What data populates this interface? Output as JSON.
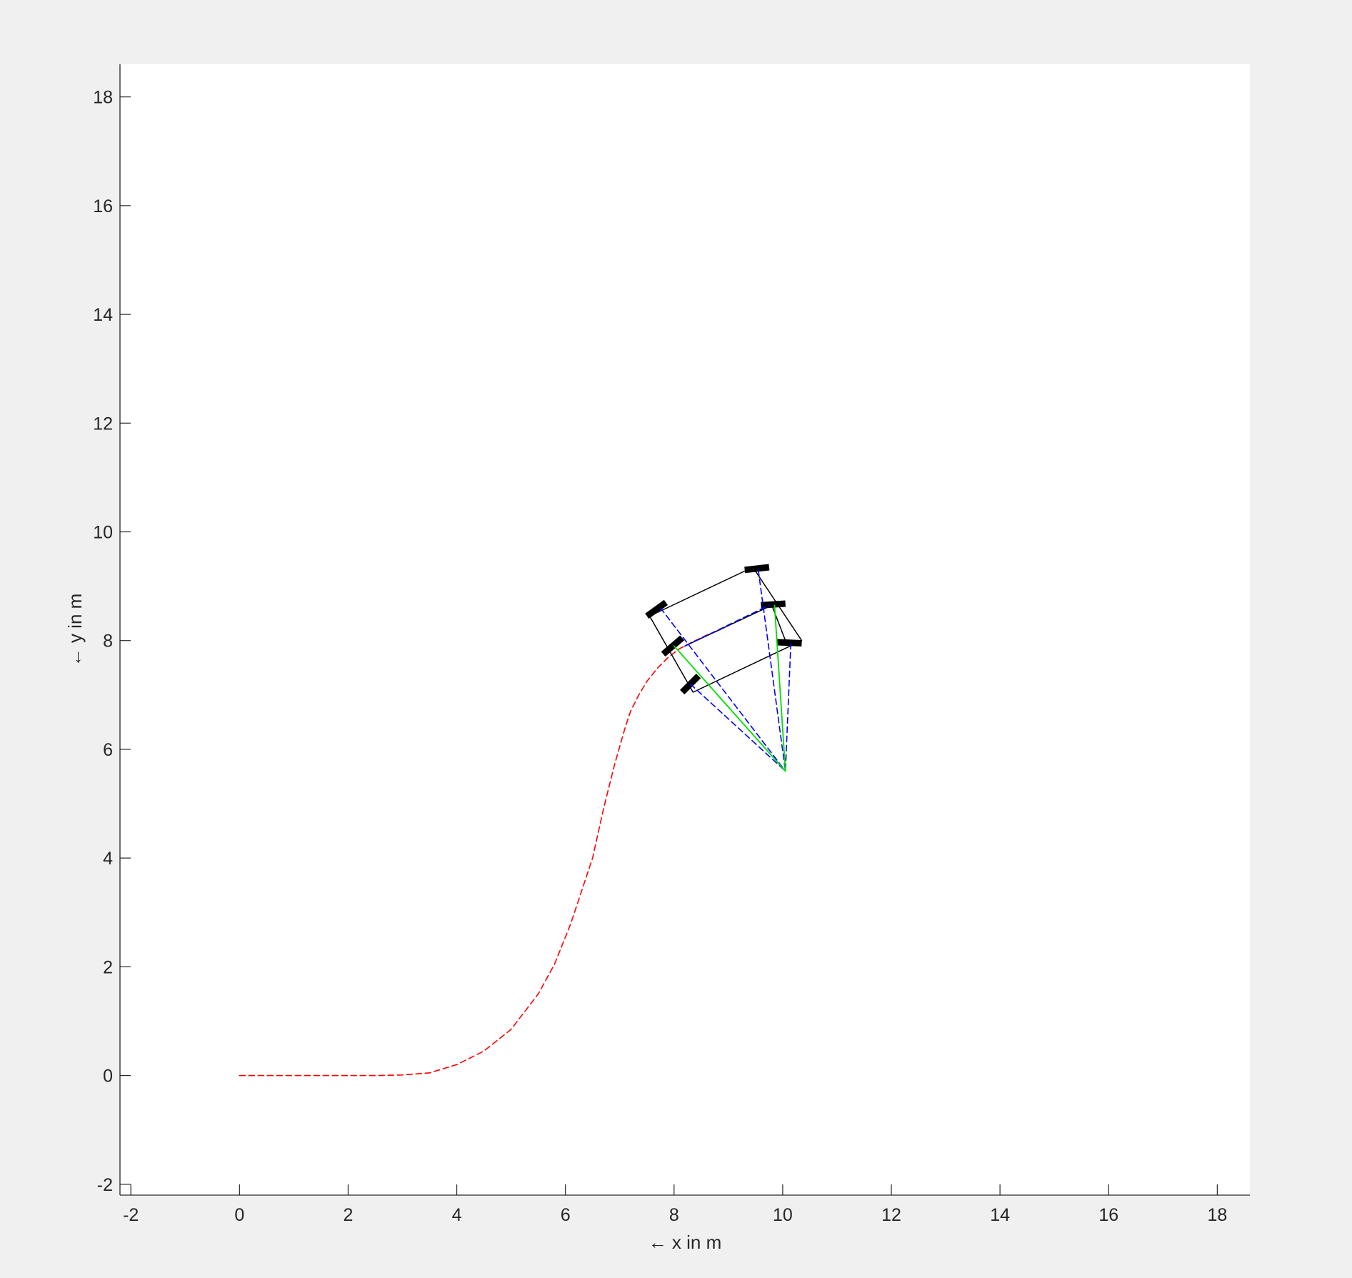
{
  "chart_data": {
    "type": "line",
    "title": "",
    "xlabel": "← x in m",
    "ylabel": "← y in m",
    "xlim": [
      -2.2,
      18.6
    ],
    "ylim": [
      -2.2,
      18.6
    ],
    "xticks": [
      -2,
      0,
      2,
      4,
      6,
      8,
      10,
      12,
      14,
      16,
      18
    ],
    "yticks": [
      -2,
      0,
      2,
      4,
      6,
      8,
      10,
      12,
      14,
      16,
      18
    ],
    "grid": false,
    "legend": "none",
    "colors": {
      "path": "#ff0000",
      "body": "#000000",
      "wheel": "#000000",
      "blue_rays": "#0000ff",
      "green_rays": "#00dd00"
    },
    "series": [
      {
        "kind": "path",
        "style": "dashed",
        "color": "#ff0000",
        "x": [
          0,
          0.5,
          1,
          1.5,
          2,
          2.5,
          3,
          3.5,
          4,
          4.5,
          5,
          5.5,
          5.8,
          6.1,
          6.3,
          6.5,
          6.6,
          6.7,
          6.8,
          6.9,
          7.0,
          7.1,
          7.2,
          7.35,
          7.5,
          7.7,
          7.9,
          8.1,
          8.35,
          8.6,
          8.85
        ],
        "y": [
          0,
          0,
          0,
          0,
          0,
          0,
          0.01,
          0.05,
          0.2,
          0.45,
          0.85,
          1.5,
          2.05,
          2.8,
          3.4,
          4.0,
          4.45,
          4.9,
          5.3,
          5.7,
          6.05,
          6.4,
          6.7,
          7.0,
          7.25,
          7.5,
          7.7,
          7.85,
          7.98,
          8.1,
          8.2
        ]
      },
      {
        "kind": "body",
        "style": "solid",
        "color": "#000000",
        "x": [
          7.55,
          9.45,
          10.35,
          8.35,
          7.55
        ],
        "y": [
          8.45,
          9.35,
          8.0,
          7.05,
          8.45
        ]
      },
      {
        "kind": "body",
        "style": "solid",
        "color": "#000000",
        "x": [
          8.2,
          9.8,
          10.05
        ],
        "y": [
          7.9,
          8.65,
          8.0
        ]
      },
      {
        "kind": "wheel",
        "style": "solid",
        "color": "#000000",
        "x": [
          7.5,
          7.85
        ],
        "y": [
          8.45,
          8.7
        ]
      },
      {
        "kind": "wheel",
        "style": "solid",
        "color": "#000000",
        "x": [
          7.8,
          8.15
        ],
        "y": [
          7.75,
          8.05
        ]
      },
      {
        "kind": "wheel",
        "style": "solid",
        "color": "#000000",
        "x": [
          8.15,
          8.45
        ],
        "y": [
          7.05,
          7.35
        ]
      },
      {
        "kind": "wheel",
        "style": "solid",
        "color": "#000000",
        "x": [
          9.3,
          9.75
        ],
        "y": [
          9.3,
          9.35
        ]
      },
      {
        "kind": "wheel",
        "style": "solid",
        "color": "#000000",
        "x": [
          9.6,
          10.05
        ],
        "y": [
          8.65,
          8.68
        ]
      },
      {
        "kind": "wheel",
        "style": "solid",
        "color": "#000000",
        "x": [
          9.9,
          10.35
        ],
        "y": [
          7.97,
          7.95
        ]
      },
      {
        "kind": "blue-ray",
        "style": "dashed",
        "color": "#0000ff",
        "x": [
          7.75,
          10.05
        ],
        "y": [
          8.6,
          5.6
        ]
      },
      {
        "kind": "blue-ray",
        "style": "dashed",
        "color": "#0000ff",
        "x": [
          8.3,
          10.05
        ],
        "y": [
          7.2,
          5.6
        ]
      },
      {
        "kind": "blue-ray",
        "style": "dashed",
        "color": "#0000ff",
        "x": [
          9.55,
          10.05
        ],
        "y": [
          9.3,
          5.6
        ]
      },
      {
        "kind": "blue-ray",
        "style": "dashed",
        "color": "#0000ff",
        "x": [
          10.15,
          10.05
        ],
        "y": [
          7.95,
          5.6
        ]
      },
      {
        "kind": "blue-ray",
        "style": "dashed",
        "color": "#0000ff",
        "x": [
          8.2,
          9.75
        ],
        "y": [
          7.9,
          8.65
        ]
      },
      {
        "kind": "green-ray",
        "style": "solid",
        "color": "#00dd00",
        "x": [
          8.0,
          10.05
        ],
        "y": [
          7.9,
          5.6
        ]
      },
      {
        "kind": "green-ray",
        "style": "solid",
        "color": "#00dd00",
        "x": [
          9.85,
          10.05
        ],
        "y": [
          8.65,
          5.6
        ]
      }
    ]
  }
}
